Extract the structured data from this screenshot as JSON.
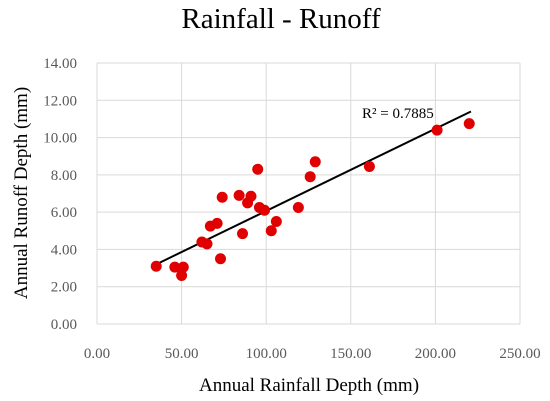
{
  "chart_data": {
    "type": "scatter",
    "title": "Rainfall - Runoff",
    "xlabel": "Annual Rainfall Depth (mm)",
    "ylabel": "Annual Runoff  Depth (mm)",
    "xlim": [
      0,
      250
    ],
    "ylim": [
      0,
      14
    ],
    "x_ticks": [
      "0.00",
      "50.00",
      "100.00",
      "150.00",
      "200.00",
      "250.00"
    ],
    "y_ticks": [
      "0.00",
      "2.00",
      "4.00",
      "6.00",
      "8.00",
      "10.00",
      "12.00",
      "14.00"
    ],
    "grid": "horizontal",
    "marker_color": "#e00000",
    "trendline": {
      "type": "linear",
      "color": "#000000",
      "x_range": [
        35,
        221
      ],
      "y_range": [
        3.2,
        11.4
      ],
      "r2_label": "R² = 0.7885"
    },
    "points": [
      {
        "x": 35,
        "y": 3.1
      },
      {
        "x": 46,
        "y": 3.05
      },
      {
        "x": 50,
        "y": 2.6
      },
      {
        "x": 51,
        "y": 3.05
      },
      {
        "x": 62,
        "y": 4.4
      },
      {
        "x": 65,
        "y": 4.3
      },
      {
        "x": 67,
        "y": 5.25
      },
      {
        "x": 71,
        "y": 5.4
      },
      {
        "x": 73,
        "y": 3.5
      },
      {
        "x": 74,
        "y": 6.8
      },
      {
        "x": 84,
        "y": 6.9
      },
      {
        "x": 86,
        "y": 4.85
      },
      {
        "x": 89,
        "y": 6.5
      },
      {
        "x": 91,
        "y": 6.85
      },
      {
        "x": 95,
        "y": 8.3
      },
      {
        "x": 96,
        "y": 6.25
      },
      {
        "x": 99,
        "y": 6.1
      },
      {
        "x": 103,
        "y": 5.0
      },
      {
        "x": 106,
        "y": 5.5
      },
      {
        "x": 119,
        "y": 6.25
      },
      {
        "x": 126,
        "y": 7.9
      },
      {
        "x": 129,
        "y": 8.7
      },
      {
        "x": 161,
        "y": 8.45
      },
      {
        "x": 201,
        "y": 10.4
      },
      {
        "x": 220,
        "y": 10.75
      }
    ]
  }
}
